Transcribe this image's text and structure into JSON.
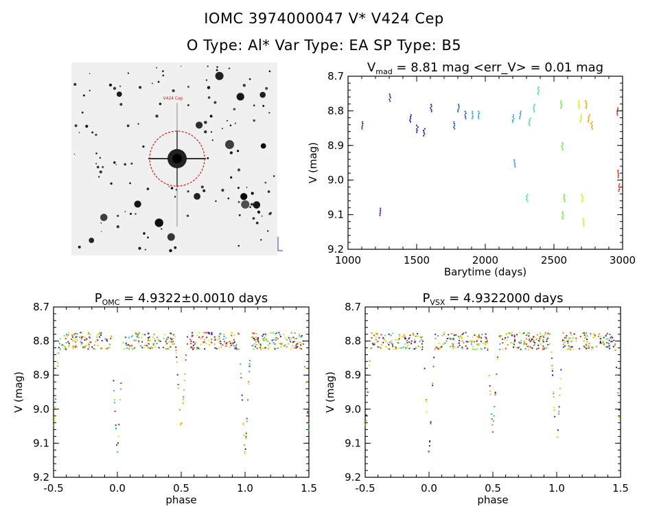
{
  "header": {
    "title_line1": "IOMC 3974000047    V* V424 Cep",
    "title_line2": "O Type: Al*  Var Type: EA   SP Type: B5"
  },
  "image_panel": {
    "target_label": "V424 Cep"
  },
  "chart_data": [
    {
      "type": "scatter",
      "title_prefix": "V",
      "title_subscript": "mad",
      "title_suffix": " = 8.81 mag <err_V> = 0.01 mag",
      "xlabel": "Barytime (days)",
      "ylabel": "V (mag)",
      "xlim": [
        1000,
        3000
      ],
      "ylim": [
        9.2,
        8.7
      ],
      "y_inverted": true,
      "xticks": [
        "1000",
        "1500",
        "2000",
        "2500",
        "3000"
      ],
      "yticks": [
        "8.7",
        "8.8",
        "8.9",
        "9.0",
        "9.1",
        "9.2"
      ],
      "color_scale": "time (purple to red)",
      "series": [
        {
          "color": "#5a1e9c",
          "points": [
            [
              1100,
              8.84
            ],
            [
              1230,
              9.09
            ],
            [
              1300,
              8.76
            ]
          ]
        },
        {
          "color": "#2a1c9e",
          "points": [
            [
              1450,
              8.82
            ],
            [
              1500,
              8.85
            ],
            [
              1550,
              8.86
            ],
            [
              1600,
              8.79
            ]
          ]
        },
        {
          "color": "#1a5cc0",
          "points": [
            [
              1770,
              8.84
            ],
            [
              1800,
              8.79
            ],
            [
              1850,
              8.81
            ]
          ]
        },
        {
          "color": "#2aa8d8",
          "points": [
            [
              1900,
              8.81
            ],
            [
              1950,
              8.81
            ],
            [
              2200,
              8.82
            ],
            [
              2210,
              8.95
            ],
            [
              2250,
              8.81
            ]
          ]
        },
        {
          "color": "#3fd8b0",
          "points": [
            [
              2300,
              9.05
            ],
            [
              2320,
              8.83
            ],
            [
              2350,
              8.79
            ],
            [
              2380,
              8.74
            ]
          ]
        },
        {
          "color": "#6ee830",
          "points": [
            [
              2550,
              8.78
            ],
            [
              2555,
              8.9
            ],
            [
              2560,
              9.1
            ],
            [
              2570,
              9.05
            ]
          ]
        },
        {
          "color": "#d8e800",
          "points": [
            [
              2680,
              8.78
            ],
            [
              2690,
              8.82
            ],
            [
              2700,
              9.05
            ],
            [
              2710,
              9.12
            ]
          ]
        },
        {
          "color": "#f0a000",
          "points": [
            [
              2730,
              8.78
            ],
            [
              2750,
              8.82
            ],
            [
              2770,
              8.84
            ]
          ]
        },
        {
          "color": "#e03010",
          "points": [
            [
              2960,
              8.8
            ],
            [
              2965,
              8.98
            ],
            [
              2970,
              9.02
            ]
          ]
        }
      ]
    },
    {
      "type": "scatter",
      "title_prefix": "P",
      "title_subscript": "OMC",
      "title_suffix": " = 4.9322±0.0010 days",
      "xlabel": "phase",
      "ylabel": "V (mag)",
      "xlim": [
        -0.5,
        1.5
      ],
      "ylim": [
        9.2,
        8.7
      ],
      "y_inverted": true,
      "xticks": [
        "-0.5",
        "0.0",
        "0.5",
        "1.0",
        "1.5"
      ],
      "yticks": [
        "8.7",
        "8.8",
        "8.9",
        "9.0",
        "9.1",
        "9.2"
      ],
      "period_days": 4.9322,
      "primary_eclipse": {
        "phase": 0.0,
        "depth_mag": 9.14,
        "baseline_mag": 8.8
      },
      "secondary_eclipse": {
        "phase": 0.5,
        "depth_mag": 9.07
      }
    },
    {
      "type": "scatter",
      "title_prefix": "P",
      "title_subscript": "VSX",
      "title_suffix": " = 4.9322000 days",
      "xlabel": "phase",
      "ylabel": "V (mag)",
      "xlim": [
        -0.5,
        1.5
      ],
      "ylim": [
        9.2,
        8.7
      ],
      "y_inverted": true,
      "xticks": [
        "-0.5",
        "0.0",
        "0.5",
        "1.0",
        "1.5"
      ],
      "yticks": [
        "8.7",
        "8.8",
        "8.9",
        "9.0",
        "9.1",
        "9.2"
      ],
      "period_days": 4.9322,
      "primary_eclipse": {
        "phase": 0.0,
        "depth_mag": 9.14,
        "baseline_mag": 8.8
      },
      "secondary_eclipse": {
        "phase": 0.5,
        "depth_mag": 9.07
      }
    }
  ]
}
